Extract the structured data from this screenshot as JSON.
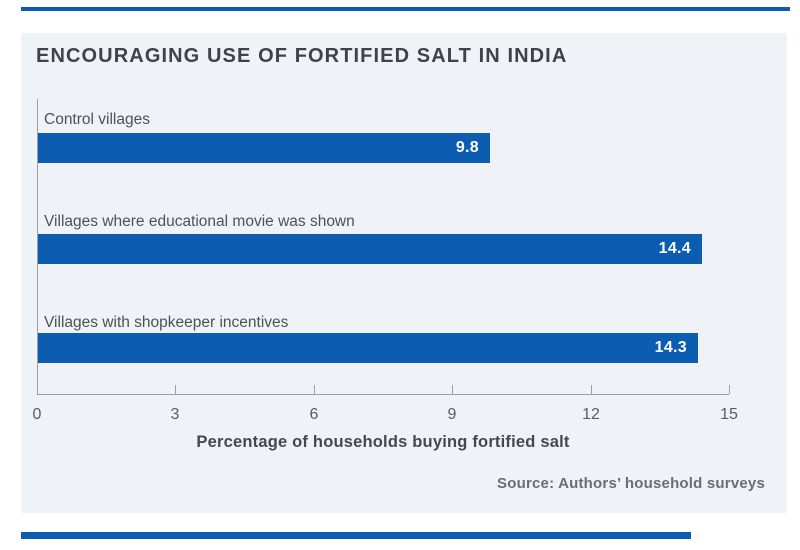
{
  "figure": {
    "title": "ENCOURAGING USE OF FORTIFIED SALT IN INDIA",
    "source_note": "Source: Authors’ household surveys"
  },
  "chart_data": {
    "type": "bar",
    "orientation": "horizontal",
    "title": "ENCOURAGING USE OF FORTIFIED SALT IN INDIA",
    "categories": [
      "Control villages",
      "Villages where educational movie was shown",
      "Villages with shopkeeper incentives"
    ],
    "values": [
      9.8,
      14.4,
      14.3
    ],
    "value_labels": [
      "9.8",
      "14.4",
      "14.3"
    ],
    "xlabel": "Percentage of households buying fortified salt",
    "ylabel": "",
    "xticks": [
      "0",
      "3",
      "6",
      "9",
      "12",
      "15"
    ],
    "xtick_values": [
      0,
      3,
      6,
      9,
      12,
      15
    ],
    "xlim": [
      0,
      15
    ],
    "grid": false,
    "legend": null,
    "bar_color": "#0c5cb2"
  },
  "colors": {
    "accent_rule": "#0c5cb2",
    "card_background": "#eff3f7",
    "bar": "#0c5cb2",
    "title_text": "#3e4347",
    "axis_line": "#9aa0a5"
  }
}
